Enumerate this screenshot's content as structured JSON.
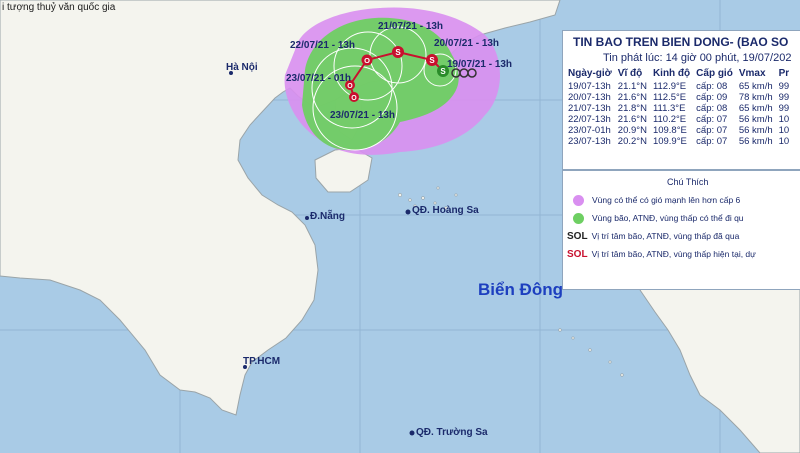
{
  "header_text": "i tượng thuỷ văn quốc gia",
  "places": {
    "hanoi": "Hà Nội",
    "danang": "Đ.Nẵng",
    "hoangsa": "QĐ. Hoàng Sa",
    "hcm": "TP.HCM",
    "truongsa": "QĐ. Trường Sa",
    "sea": "Biển Đông"
  },
  "track_labels": [
    "21/07/21 - 13h",
    "22/07/21 - 13h",
    "20/07/21 - 13h",
    "19/07/21 - 13h",
    "23/07/21 - 01h",
    "23/07/21 - 13h"
  ],
  "panel": {
    "title": "TIN BAO TREN BIEN DONG- (BAO SO",
    "issued": "Tin phát lúc: 14 giờ 00 phút, 19/07/202",
    "headers": [
      "Ngày-giờ",
      "Vĩ độ",
      "Kinh độ",
      "Cấp gió",
      "Vmax",
      "Pr"
    ],
    "rows": [
      [
        "19/07-13h",
        "21.1°N",
        "112.9°E",
        "cấp: 08",
        "65 km/h",
        "99"
      ],
      [
        "20/07-13h",
        "21.6°N",
        "112.5°E",
        "cấp: 09",
        "78 km/h",
        "99"
      ],
      [
        "21/07-13h",
        "21.8°N",
        "111.3°E",
        "cấp: 08",
        "65 km/h",
        "99"
      ],
      [
        "22/07-13h",
        "21.6°N",
        "110.2°E",
        "cấp: 07",
        "56 km/h",
        "10"
      ],
      [
        "23/07-01h",
        "20.9°N",
        "109.8°E",
        "cấp: 07",
        "56 km/h",
        "10"
      ],
      [
        "23/07-13h",
        "20.2°N",
        "109.9°E",
        "cấp: 07",
        "56 km/h",
        "10"
      ]
    ]
  },
  "legend": {
    "title": "Chú Thích",
    "items": [
      "Vùng có thể có gió mạnh lên hơn cấp 6",
      "Vùng bão, ATNĐ, vùng thấp có thể đi qu",
      "Vị trí tâm bão, ATNĐ, vùng thấp đã qua",
      "Vị trí tâm bão, ATNĐ, vùng thấp hiện tại, dự"
    ],
    "symbols_past": "SOL",
    "symbols_current": "SOL"
  },
  "colors": {
    "sea": "#a9cbe6",
    "land": "#f4f4ee",
    "strong_wind_zone": "#d98ff0",
    "storm_zone": "#6ecf62",
    "track": "#c8102e"
  }
}
